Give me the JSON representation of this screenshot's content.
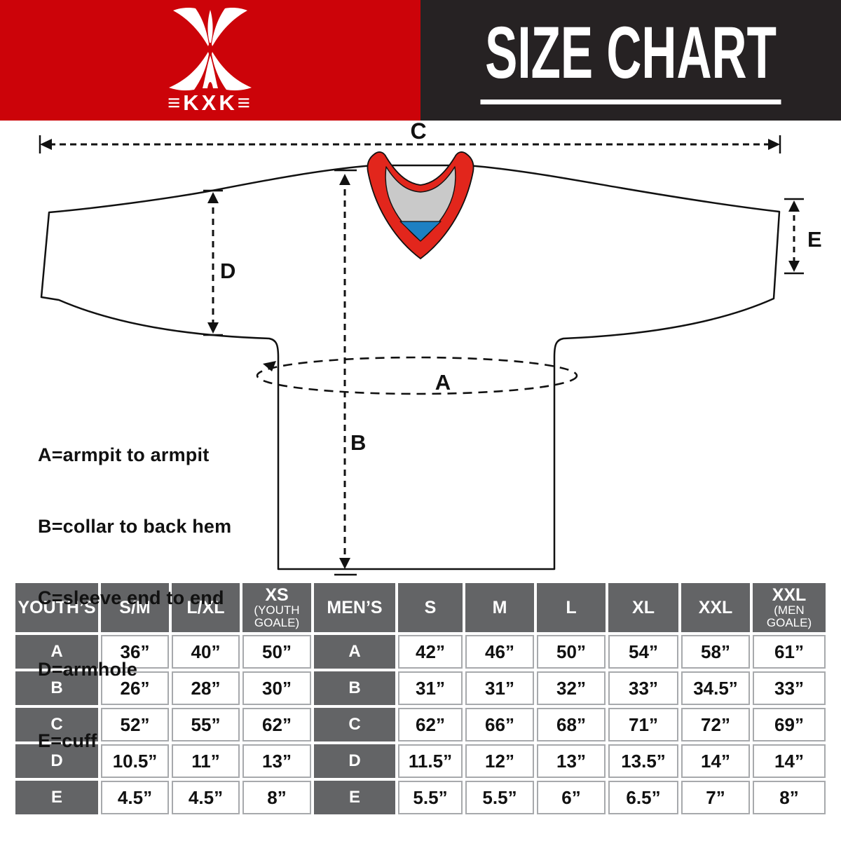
{
  "brand": {
    "logo_text": "≡KXK≡"
  },
  "header": {
    "title": "SIZE CHART"
  },
  "colors": {
    "brand_red": "#cc0309",
    "header_black": "#262223",
    "collar_red": "#e2261c",
    "collar_gray": "#c9c9c9",
    "collar_blue": "#1d80c3",
    "table_header_gray": "#636466",
    "table_border_gray": "#a7a9ac"
  },
  "diagram": {
    "measure_labels": {
      "A": "A",
      "B": "B",
      "C": "C",
      "D": "D",
      "E": "E"
    },
    "legend_lines": [
      "A=armpit to armpit",
      "B=collar to back hem",
      "C=sleeve end to end",
      "D=armhole",
      "E=cuff"
    ]
  },
  "size_table": {
    "youth": {
      "group_label": "YOUTH’S",
      "columns": [
        {
          "label": "S/M",
          "sub": ""
        },
        {
          "label": "L/XL",
          "sub": ""
        },
        {
          "label": "XS",
          "sub": "(YOUTH GOALE)"
        }
      ],
      "rows": [
        {
          "label": "A",
          "values": [
            "36”",
            "40”",
            "50”"
          ]
        },
        {
          "label": "B",
          "values": [
            "26”",
            "28”",
            "30”"
          ]
        },
        {
          "label": "C",
          "values": [
            "52”",
            "55”",
            "62”"
          ]
        },
        {
          "label": "D",
          "values": [
            "10.5”",
            "11”",
            "13”"
          ]
        },
        {
          "label": "E",
          "values": [
            "4.5”",
            "4.5”",
            "8”"
          ]
        }
      ]
    },
    "men": {
      "group_label": "MEN’S",
      "columns": [
        {
          "label": "S",
          "sub": ""
        },
        {
          "label": "M",
          "sub": ""
        },
        {
          "label": "L",
          "sub": ""
        },
        {
          "label": "XL",
          "sub": ""
        },
        {
          "label": "XXL",
          "sub": ""
        },
        {
          "label": "XXL",
          "sub": "(MEN GOALE)"
        }
      ],
      "rows": [
        {
          "label": "A",
          "values": [
            "42”",
            "46”",
            "50”",
            "54”",
            "58”",
            "61”"
          ]
        },
        {
          "label": "B",
          "values": [
            "31”",
            "31”",
            "32”",
            "33”",
            "34.5”",
            "33”"
          ]
        },
        {
          "label": "C",
          "values": [
            "62”",
            "66”",
            "68”",
            "71”",
            "72”",
            "69”"
          ]
        },
        {
          "label": "D",
          "values": [
            "11.5”",
            "12”",
            "13”",
            "13.5”",
            "14”",
            "14”"
          ]
        },
        {
          "label": "E",
          "values": [
            "5.5”",
            "5.5”",
            "6”",
            "6.5”",
            "7”",
            "8”"
          ]
        }
      ]
    }
  }
}
